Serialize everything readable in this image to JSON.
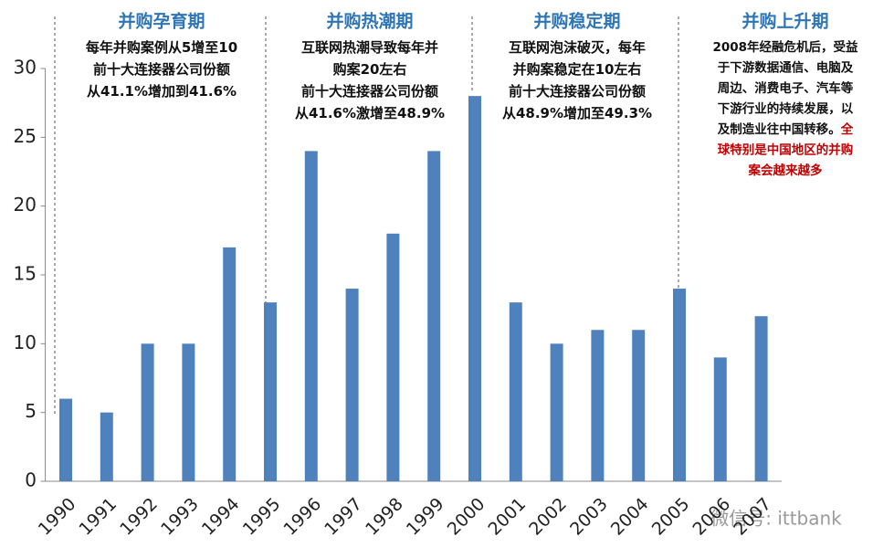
{
  "chart_data": {
    "type": "bar",
    "categories": [
      "1990",
      "1991",
      "1992",
      "1993",
      "1994",
      "1995",
      "1996",
      "1997",
      "1998",
      "1999",
      "2000",
      "2001",
      "2002",
      "2003",
      "2004",
      "2005",
      "2006",
      "2007"
    ],
    "values": [
      6,
      5,
      10,
      10,
      17,
      13,
      24,
      14,
      18,
      24,
      28,
      13,
      10,
      11,
      11,
      14,
      9,
      12
    ],
    "color": "#4f81bd",
    "ylim": [
      0,
      30
    ],
    "yticks": [
      0,
      5,
      10,
      15,
      20,
      25,
      30
    ],
    "annotations": [
      {
        "title": "并购孕育期",
        "lines": [
          [
            "每年并购案例从5增至10"
          ],
          [
            "前十大连接器公司份额"
          ],
          [
            "从41.1%增加到41.6%"
          ]
        ]
      },
      {
        "title": "并购热潮期",
        "lines": [
          [
            "互联网热潮导致每年并"
          ],
          [
            "购案20左右"
          ],
          [
            "前十大连接器公司份额"
          ],
          [
            "从41.6%激增至48.9%"
          ]
        ]
      },
      {
        "title": "并购稳定期",
        "lines": [
          [
            "互联网泡沫破灭，每年"
          ],
          [
            "并购案稳定在10左右"
          ],
          [
            "前十大连接器公司份额"
          ],
          [
            "从48.9%增加至49.3%"
          ]
        ]
      },
      {
        "title": "并购上升期",
        "lines": [
          [
            "2008年经融危机后，受益"
          ],
          [
            "于下游数据通信、电脑及"
          ],
          [
            "周边、消费电子、汽车等"
          ],
          [
            "下游行业的持续发展，以"
          ],
          [
            "及制造业往中国转移。",
            {
              "text": "全",
              "color": "#c00000"
            }
          ],
          [
            {
              "text": "球特别是中国地区的并购",
              "color": "#c00000"
            }
          ],
          [
            {
              "text": "案会越来越多",
              "color": "#c00000"
            }
          ]
        ]
      }
    ],
    "title_color": "#2e75b6",
    "watermark": "微信号: ittbank"
  }
}
